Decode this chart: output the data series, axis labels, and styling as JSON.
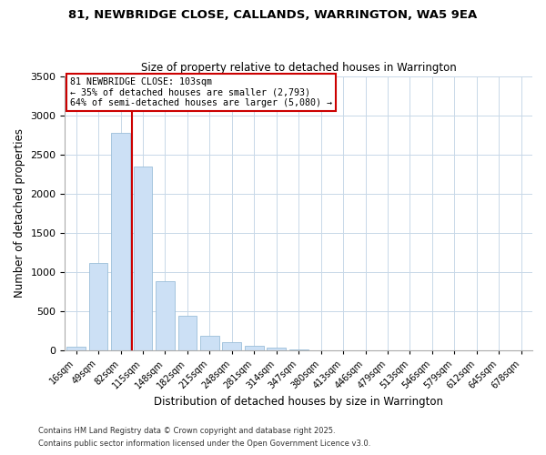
{
  "title": "81, NEWBRIDGE CLOSE, CALLANDS, WARRINGTON, WA5 9EA",
  "subtitle": "Size of property relative to detached houses in Warrington",
  "xlabel": "Distribution of detached houses by size in Warrington",
  "ylabel": "Number of detached properties",
  "bar_color": "#cce0f5",
  "bar_edge_color": "#9bbfd9",
  "categories": [
    "16sqm",
    "49sqm",
    "82sqm",
    "115sqm",
    "148sqm",
    "182sqm",
    "215sqm",
    "248sqm",
    "281sqm",
    "314sqm",
    "347sqm",
    "380sqm",
    "413sqm",
    "446sqm",
    "479sqm",
    "513sqm",
    "546sqm",
    "579sqm",
    "612sqm",
    "645sqm",
    "678sqm"
  ],
  "values": [
    50,
    1120,
    2770,
    2340,
    880,
    440,
    185,
    100,
    60,
    30,
    10,
    5,
    2,
    1,
    0,
    0,
    0,
    0,
    0,
    0,
    0
  ],
  "ylim": [
    0,
    3500
  ],
  "yticks": [
    0,
    500,
    1000,
    1500,
    2000,
    2500,
    3000,
    3500
  ],
  "vline_color": "#cc0000",
  "annotation_title": "81 NEWBRIDGE CLOSE: 103sqm",
  "annotation_line1": "← 35% of detached houses are smaller (2,793)",
  "annotation_line2": "64% of semi-detached houses are larger (5,080) →",
  "annotation_box_color": "#ffffff",
  "annotation_box_edge": "#cc0000",
  "footer1": "Contains HM Land Registry data © Crown copyright and database right 2025.",
  "footer2": "Contains public sector information licensed under the Open Government Licence v3.0.",
  "background_color": "#ffffff",
  "grid_color": "#c8d8e8"
}
